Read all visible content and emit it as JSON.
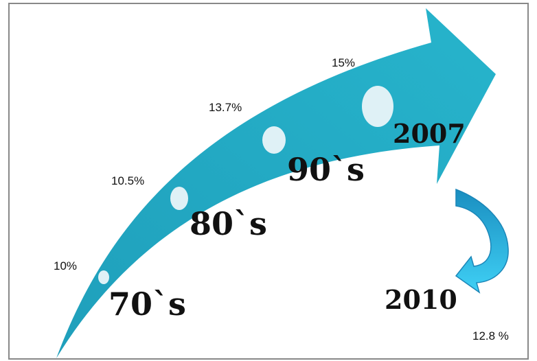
{
  "timeline": [
    {
      "decade": "70`s",
      "rate": "10%"
    },
    {
      "decade": "80`s",
      "rate": "10.5%"
    },
    {
      "decade": "90`s",
      "rate": "13.7%"
    },
    {
      "decade": "2007",
      "rate": "15%"
    }
  ],
  "forecast": {
    "year": "2010",
    "rate": "12.8 %"
  },
  "colors": {
    "main_arrow": "#24b0c8",
    "main_arrow_dark": "#1a97b0",
    "marker": "#dff1f6",
    "curved_arrow_light": "#38c6f0",
    "curved_arrow_dark": "#1796c8",
    "frame": "#888888"
  }
}
